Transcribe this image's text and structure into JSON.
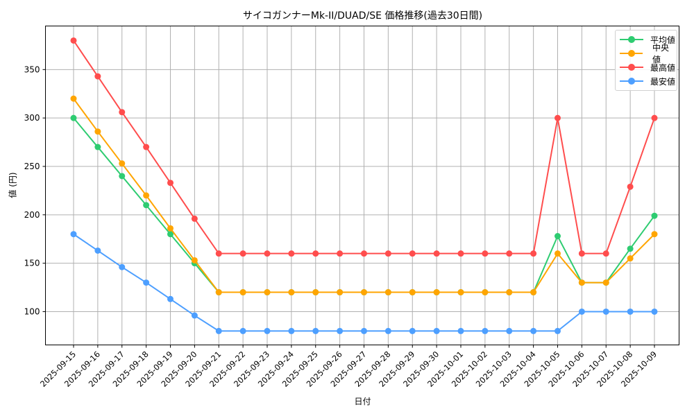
{
  "chart_data": {
    "type": "line",
    "title": "サイコガンナーMk-II/DUAD/SE 価格推移(過去30日間)",
    "xlabel": "日付",
    "ylabel": "値 (円)",
    "categories": [
      "2025-09-15",
      "2025-09-16",
      "2025-09-17",
      "2025-09-18",
      "2025-09-19",
      "2025-09-20",
      "2025-09-21",
      "2025-09-22",
      "2025-09-23",
      "2025-09-24",
      "2025-09-25",
      "2025-09-26",
      "2025-09-27",
      "2025-09-28",
      "2025-09-29",
      "2025-09-30",
      "2025-10-01",
      "2025-10-02",
      "2025-10-03",
      "2025-10-04",
      "2025-10-05",
      "2025-10-06",
      "2025-10-07",
      "2025-10-08",
      "2025-10-09"
    ],
    "series": [
      {
        "name": "平均値",
        "color": "#2ecc71",
        "values": [
          300,
          270,
          240,
          210,
          180,
          150,
          120,
          120,
          120,
          120,
          120,
          120,
          120,
          120,
          120,
          120,
          120,
          120,
          120,
          120,
          178,
          130,
          130,
          165,
          199
        ]
      },
      {
        "name": "中央値",
        "color": "#ffa500",
        "values": [
          320,
          286,
          253,
          220,
          186,
          153,
          120,
          120,
          120,
          120,
          120,
          120,
          120,
          120,
          120,
          120,
          120,
          120,
          120,
          120,
          160,
          130,
          130,
          155,
          180
        ]
      },
      {
        "name": "最高値",
        "color": "#ff4d4d",
        "values": [
          380,
          343,
          306,
          270,
          233,
          196,
          160,
          160,
          160,
          160,
          160,
          160,
          160,
          160,
          160,
          160,
          160,
          160,
          160,
          160,
          300,
          160,
          160,
          229,
          300
        ]
      },
      {
        "name": "最安値",
        "color": "#4d9fff",
        "values": [
          180,
          163,
          146,
          130,
          113,
          96,
          80,
          80,
          80,
          80,
          80,
          80,
          80,
          80,
          80,
          80,
          80,
          80,
          80,
          80,
          80,
          100,
          100,
          100,
          100
        ]
      }
    ],
    "yticks": [
      100,
      150,
      200,
      250,
      300,
      350
    ],
    "ylim": [
      65.6,
      395
    ],
    "grid": true,
    "legend_position": "upper right"
  }
}
